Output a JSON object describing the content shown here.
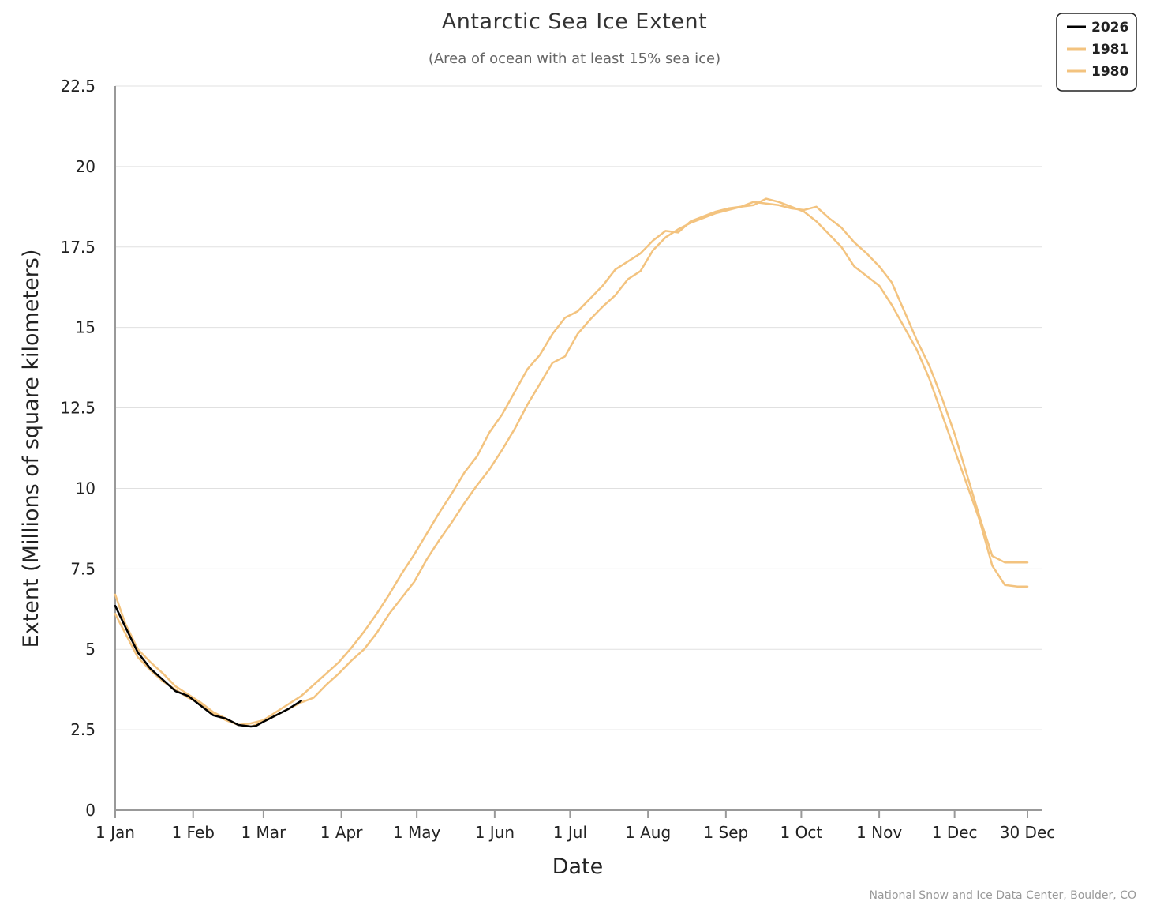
{
  "chart_data": {
    "type": "line",
    "title": "Antarctic Sea Ice Extent",
    "subtitle": "(Area of ocean with at least 15% sea ice)",
    "xlabel": "Date",
    "ylabel": "Extent (Millions of square kilometers)",
    "credit": "National Snow and Ice Data Center, Boulder, CO",
    "x_unit": "day of year",
    "xlim": [
      1,
      364
    ],
    "ylim": [
      0,
      22.5
    ],
    "yticks": [
      0,
      2.5,
      5,
      7.5,
      10,
      12.5,
      15,
      17.5,
      20,
      22.5
    ],
    "ytick_labels": [
      "0",
      "2.5",
      "5",
      "7.5",
      "10",
      "12.5",
      "15",
      "17.5",
      "20",
      "22.5"
    ],
    "xticks": [
      1,
      32,
      60,
      91,
      121,
      152,
      182,
      213,
      244,
      274,
      305,
      335,
      364
    ],
    "xtick_labels": [
      "1 Jan",
      "1 Feb",
      "1 Mar",
      "1 Apr",
      "1 May",
      "1 Jun",
      "1 Jul",
      "1 Aug",
      "1 Sep",
      "1 Oct",
      "1 Nov",
      "1 Dec",
      "30 Dec"
    ],
    "grid": true,
    "legend_position": "top-right",
    "colors": {
      "2026": "#000000",
      "1981": "#f3c37f",
      "1980": "#f3c37f"
    },
    "series": [
      {
        "name": "2026",
        "x": [
          1,
          5,
          10,
          15,
          20,
          25,
          30,
          35,
          40,
          45,
          50,
          55,
          57,
          60,
          65,
          70,
          75
        ],
        "y": [
          6.35,
          5.7,
          4.9,
          4.4,
          4.05,
          3.7,
          3.55,
          3.25,
          2.95,
          2.85,
          2.65,
          2.6,
          2.62,
          2.75,
          2.95,
          3.15,
          3.4
        ]
      },
      {
        "name": "1981",
        "x": [
          1,
          5,
          10,
          15,
          20,
          25,
          30,
          35,
          40,
          45,
          50,
          55,
          60,
          65,
          70,
          75,
          80,
          85,
          90,
          95,
          100,
          105,
          110,
          115,
          120,
          125,
          130,
          135,
          140,
          145,
          150,
          155,
          160,
          165,
          170,
          175,
          180,
          185,
          190,
          195,
          200,
          205,
          210,
          215,
          220,
          225,
          230,
          235,
          240,
          245,
          250,
          255,
          260,
          265,
          270,
          275,
          280,
          285,
          290,
          295,
          300,
          305,
          310,
          315,
          320,
          325,
          330,
          335,
          340,
          345,
          350,
          355,
          360,
          364
        ],
        "y": [
          6.1,
          5.5,
          4.75,
          4.35,
          4.0,
          3.75,
          3.5,
          3.3,
          3.0,
          2.8,
          2.65,
          2.7,
          2.8,
          3.05,
          3.3,
          3.55,
          3.9,
          4.25,
          4.6,
          5.05,
          5.55,
          6.1,
          6.7,
          7.35,
          7.95,
          8.6,
          9.25,
          9.85,
          10.5,
          11.0,
          11.75,
          12.3,
          13.0,
          13.7,
          14.15,
          14.8,
          15.3,
          15.5,
          15.9,
          16.3,
          16.8,
          17.05,
          17.3,
          17.7,
          18.0,
          17.95,
          18.3,
          18.45,
          18.6,
          18.7,
          18.75,
          18.8,
          19.0,
          18.9,
          18.75,
          18.6,
          18.3,
          17.9,
          17.5,
          16.9,
          16.6,
          16.3,
          15.7,
          15.0,
          14.3,
          13.4,
          12.3,
          11.2,
          10.1,
          9.0,
          7.6,
          7.0,
          6.95,
          6.95
        ]
      },
      {
        "name": "1980",
        "x": [
          1,
          5,
          10,
          15,
          20,
          25,
          30,
          35,
          40,
          45,
          50,
          55,
          60,
          65,
          70,
          75,
          80,
          85,
          90,
          95,
          100,
          105,
          110,
          115,
          120,
          125,
          130,
          135,
          140,
          145,
          150,
          155,
          160,
          165,
          170,
          175,
          180,
          185,
          190,
          195,
          200,
          205,
          210,
          215,
          220,
          225,
          230,
          235,
          240,
          245,
          250,
          255,
          260,
          265,
          270,
          275,
          280,
          285,
          290,
          295,
          300,
          305,
          310,
          315,
          320,
          325,
          330,
          335,
          340,
          345,
          350,
          355,
          360,
          364
        ],
        "y": [
          6.7,
          5.8,
          5.0,
          4.6,
          4.25,
          3.85,
          3.6,
          3.35,
          3.05,
          2.85,
          2.65,
          2.6,
          2.75,
          2.95,
          3.15,
          3.35,
          3.5,
          3.9,
          4.25,
          4.65,
          5.0,
          5.5,
          6.1,
          6.6,
          7.1,
          7.8,
          8.4,
          8.95,
          9.55,
          10.1,
          10.6,
          11.2,
          11.85,
          12.6,
          13.25,
          13.9,
          14.1,
          14.8,
          15.25,
          15.65,
          16.0,
          16.5,
          16.75,
          17.4,
          17.8,
          18.05,
          18.25,
          18.4,
          18.55,
          18.65,
          18.75,
          18.9,
          18.85,
          18.8,
          18.7,
          18.65,
          18.75,
          18.4,
          18.1,
          17.65,
          17.3,
          16.9,
          16.4,
          15.5,
          14.6,
          13.8,
          12.8,
          11.7,
          10.4,
          9.1,
          7.9,
          7.7,
          7.7,
          7.7
        ]
      }
    ]
  }
}
